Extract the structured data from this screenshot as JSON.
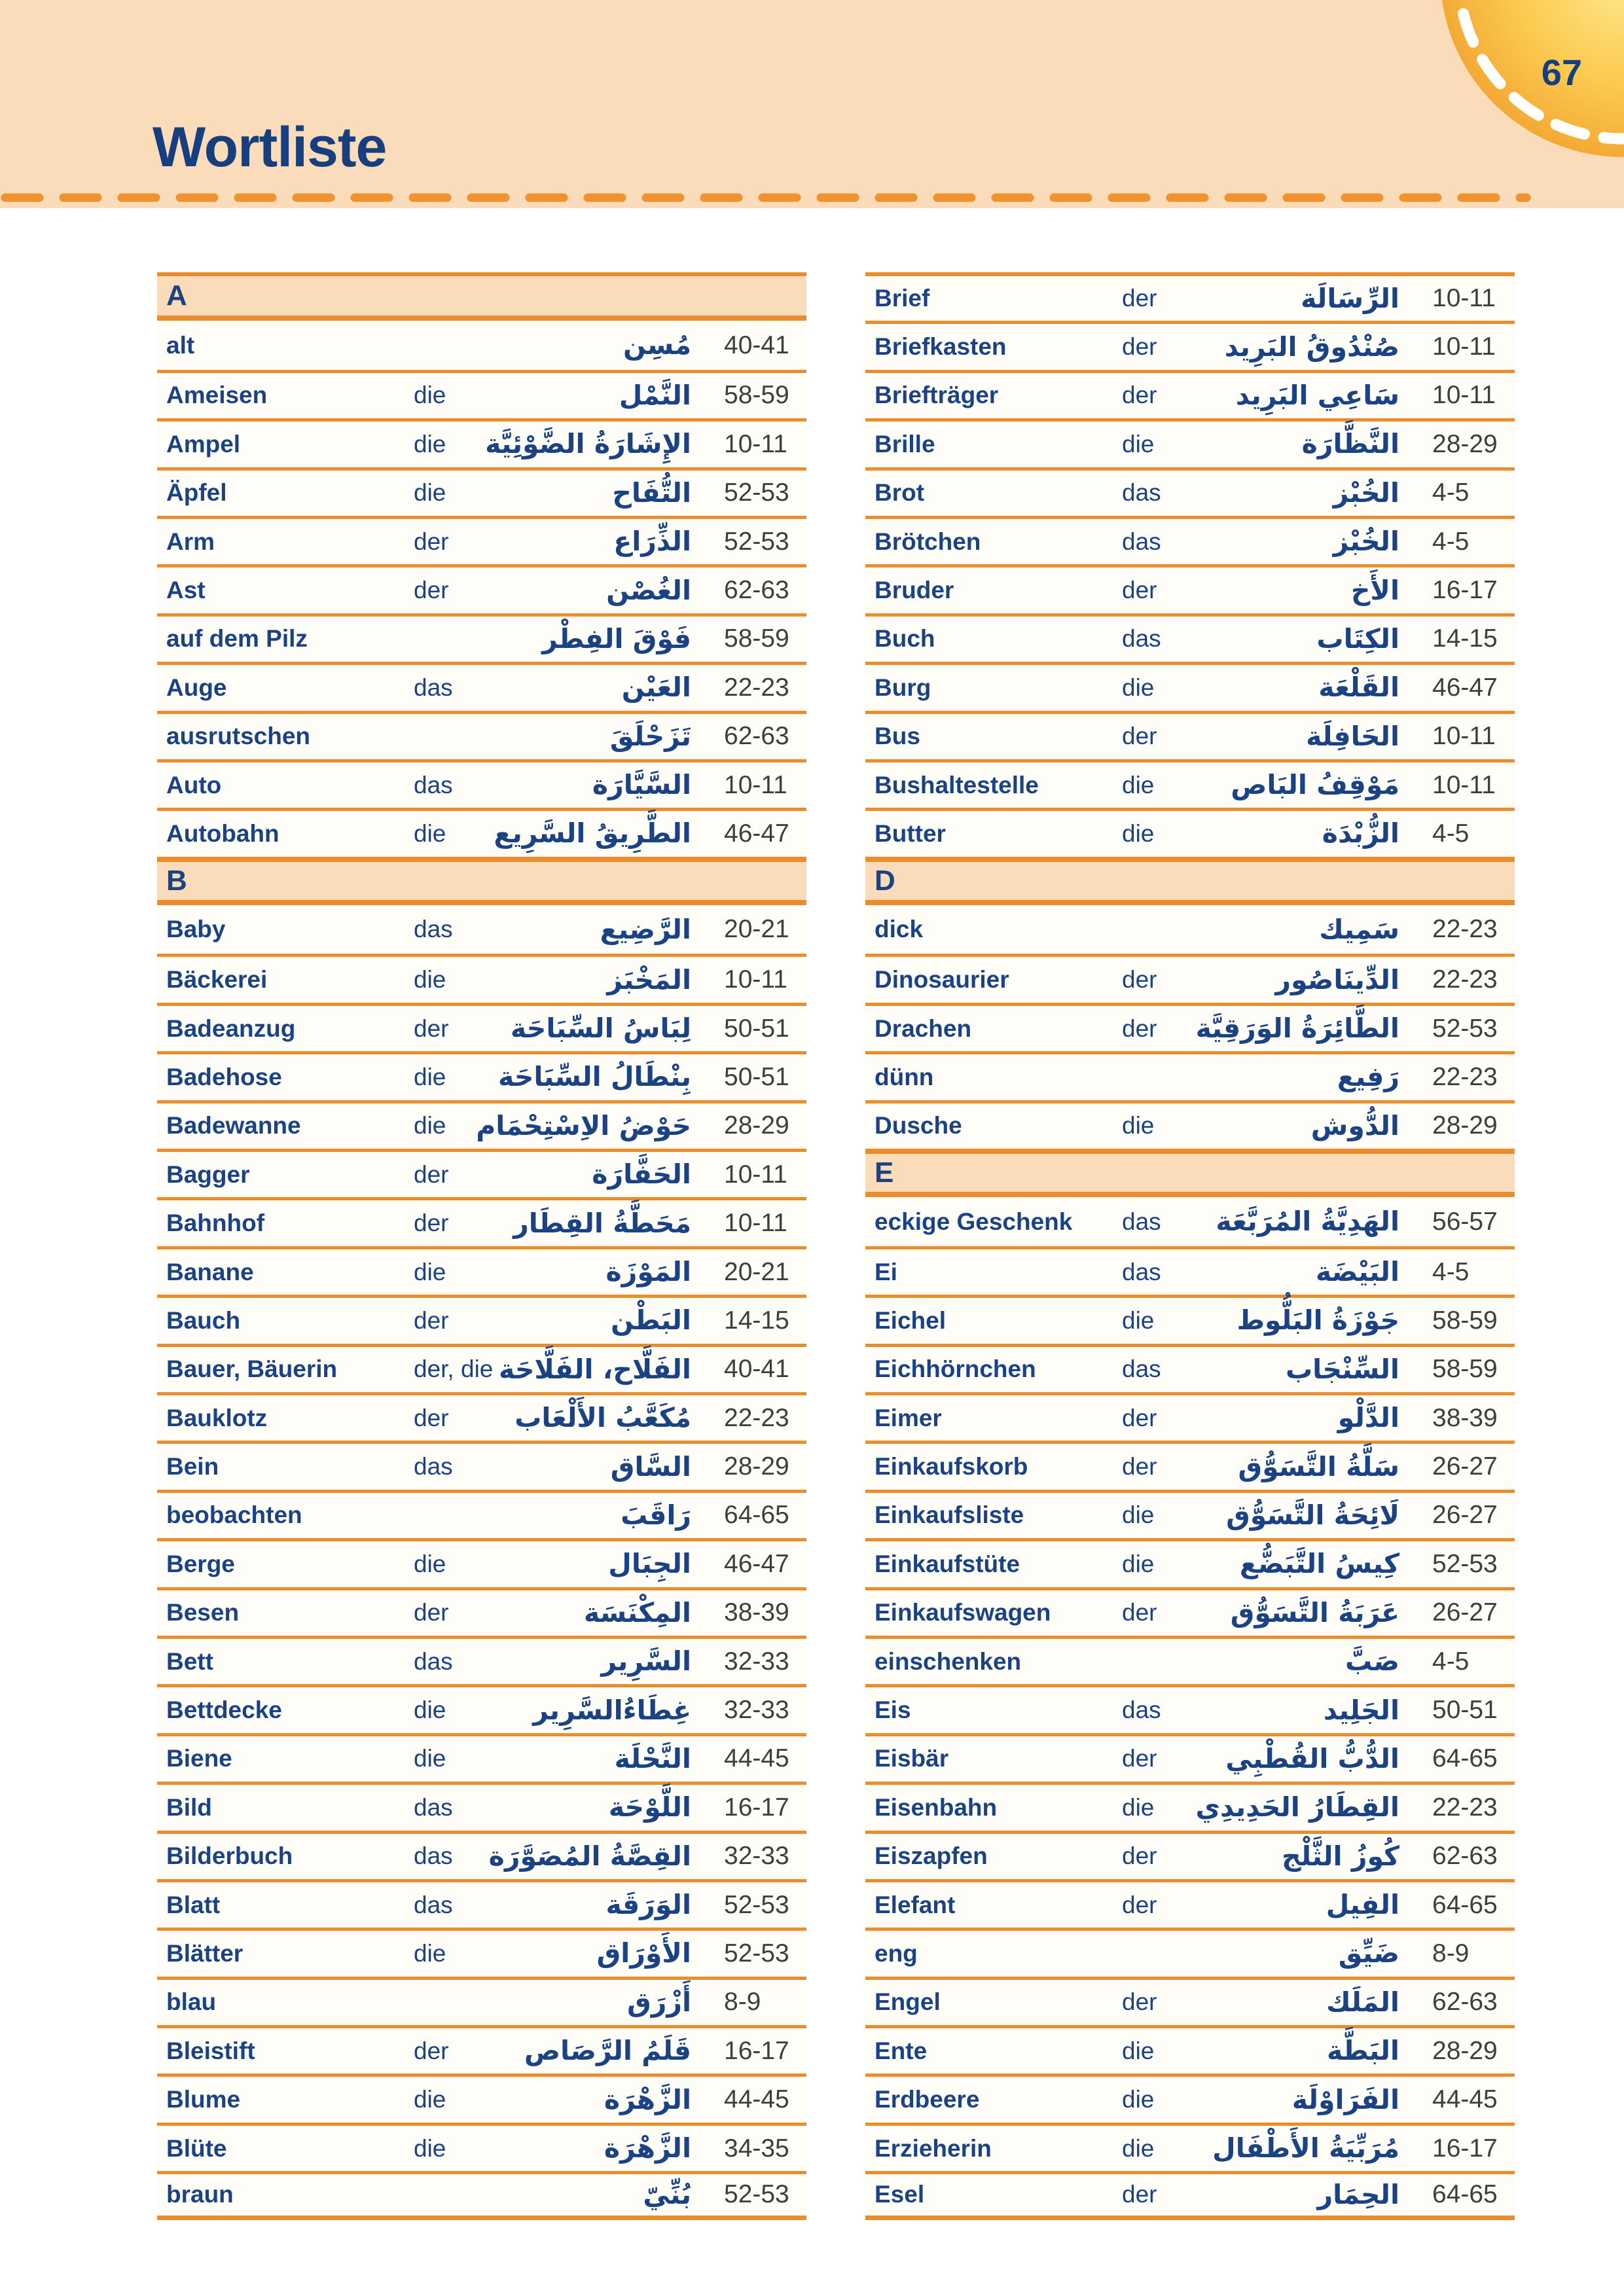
{
  "header": {
    "title": "Wortliste",
    "page_number": "67"
  },
  "colors": {
    "band_peach": "#fbdcba",
    "row_separator_orange": "#ec8d2d",
    "navy_text": "#1b4384",
    "page_number_gray": "#3f3e3c",
    "sun_orange": "#f2a22f"
  },
  "wordlist": {
    "left_rows": [
      {
        "letter": "A"
      },
      {
        "word": "alt",
        "article": "",
        "arabic": "مُسِن",
        "pages": "40-41"
      },
      {
        "word": "Ameisen",
        "article": "die",
        "arabic": "النَّمْل",
        "pages": "58-59"
      },
      {
        "word": "Ampel",
        "article": "die",
        "arabic": "الإِشَارَةُ الضَّوْئِيَّة",
        "pages": "10-11"
      },
      {
        "word": "Äpfel",
        "article": "die",
        "arabic": "التُّفَاح",
        "pages": "52-53"
      },
      {
        "word": "Arm",
        "article": "der",
        "arabic": "الذِّرَاع",
        "pages": "52-53"
      },
      {
        "word": "Ast",
        "article": "der",
        "arabic": "الغُصْن",
        "pages": "62-63"
      },
      {
        "word": "auf dem Pilz",
        "article": "",
        "arabic": "فَوْقَ الفِطْر",
        "pages": "58-59"
      },
      {
        "word": "Auge",
        "article": "das",
        "arabic": "العَيْن",
        "pages": "22-23"
      },
      {
        "word": "ausrutschen",
        "article": "",
        "arabic": "تَزَحْلَقَ",
        "pages": "62-63"
      },
      {
        "word": "Auto",
        "article": "das",
        "arabic": "السَّيَّارَة",
        "pages": "10-11"
      },
      {
        "word": "Autobahn",
        "article": "die",
        "arabic": "الطَّرِيقُ السَّرِيع",
        "pages": "46-47"
      },
      {
        "letter": "B"
      },
      {
        "word": "Baby",
        "article": "das",
        "arabic": "الرَّضِيع",
        "pages": "20-21"
      },
      {
        "word": "Bäckerei",
        "article": "die",
        "arabic": "المَخْبَز",
        "pages": "10-11"
      },
      {
        "word": "Badeanzug",
        "article": "der",
        "arabic": "لِبَاسُ السِّبَاحَة",
        "pages": "50-51"
      },
      {
        "word": "Badehose",
        "article": "die",
        "arabic": "بِنْطَالُ السِّبَاحَة",
        "pages": "50-51"
      },
      {
        "word": "Badewanne",
        "article": "die",
        "arabic": "حَوْضُ الاِسْتِحْمَام",
        "pages": "28-29"
      },
      {
        "word": "Bagger",
        "article": "der",
        "arabic": "الحَفَّارَة",
        "pages": "10-11"
      },
      {
        "word": "Bahnhof",
        "article": "der",
        "arabic": "مَحَطَّةُ القِطَار",
        "pages": "10-11"
      },
      {
        "word": "Banane",
        "article": "die",
        "arabic": "المَوْزَة",
        "pages": "20-21"
      },
      {
        "word": "Bauch",
        "article": "der",
        "arabic": "البَطْن",
        "pages": "14-15"
      },
      {
        "word": "Bauer, Bäuerin",
        "article": "der, die",
        "arabic": "الفَلَّاح، الفَلَّاحَة",
        "pages": "40-41"
      },
      {
        "word": "Bauklotz",
        "article": "der",
        "arabic": "مُكَعَّبُ الأَلْعَاب",
        "pages": "22-23"
      },
      {
        "word": "Bein",
        "article": "das",
        "arabic": "السَّاق",
        "pages": "28-29"
      },
      {
        "word": "beobachten",
        "article": "",
        "arabic": "رَاقَبَ",
        "pages": "64-65"
      },
      {
        "word": "Berge",
        "article": "die",
        "arabic": "الجِبَال",
        "pages": "46-47"
      },
      {
        "word": "Besen",
        "article": "der",
        "arabic": "المِكْنَسَة",
        "pages": "38-39"
      },
      {
        "word": "Bett",
        "article": "das",
        "arabic": "السَّرِير",
        "pages": "32-33"
      },
      {
        "word": "Bettdecke",
        "article": "die",
        "arabic": "غِطَاءُالسَّرِير",
        "pages": "32-33"
      },
      {
        "word": "Biene",
        "article": "die",
        "arabic": "النَّحْلَة",
        "pages": "44-45"
      },
      {
        "word": "Bild",
        "article": "das",
        "arabic": "اللَّوْحَة",
        "pages": "16-17"
      },
      {
        "word": "Bilderbuch",
        "article": "das",
        "arabic": "القِصَّةُ المُصَوَّرَة",
        "pages": "32-33"
      },
      {
        "word": "Blatt",
        "article": "das",
        "arabic": "الوَرَقَة",
        "pages": "52-53"
      },
      {
        "word": "Blätter",
        "article": "die",
        "arabic": "الأَوْرَاق",
        "pages": "52-53"
      },
      {
        "word": "blau",
        "article": "",
        "arabic": "أَزْرَق",
        "pages": "8-9"
      },
      {
        "word": "Bleistift",
        "article": "der",
        "arabic": "قَلَمُ الرَّصَاص",
        "pages": "16-17"
      },
      {
        "word": "Blume",
        "article": "die",
        "arabic": "الزَّهْرَة",
        "pages": "44-45"
      },
      {
        "word": "Blüte",
        "article": "die",
        "arabic": "الزَّهْرَة",
        "pages": "34-35"
      },
      {
        "word": "braun",
        "article": "",
        "arabic": "بُنِّيّ",
        "pages": "52-53"
      }
    ],
    "right_rows": [
      {
        "word": "Brief",
        "article": "der",
        "arabic": "الرِّسَالَة",
        "pages": "10-11"
      },
      {
        "word": "Briefkasten",
        "article": "der",
        "arabic": "صُنْدُوقُ البَرِيد",
        "pages": "10-11"
      },
      {
        "word": "Briefträger",
        "article": "der",
        "arabic": "سَاعِي البَرِيد",
        "pages": "10-11"
      },
      {
        "word": "Brille",
        "article": "die",
        "arabic": "النَّظَّارَة",
        "pages": "28-29"
      },
      {
        "word": "Brot",
        "article": "das",
        "arabic": "الخُبْز",
        "pages": "4-5"
      },
      {
        "word": "Brötchen",
        "article": "das",
        "arabic": "الخُبْز",
        "pages": "4-5"
      },
      {
        "word": "Bruder",
        "article": "der",
        "arabic": "الأَخ",
        "pages": "16-17"
      },
      {
        "word": "Buch",
        "article": "das",
        "arabic": "الكِتَاب",
        "pages": "14-15"
      },
      {
        "word": "Burg",
        "article": "die",
        "arabic": "القَلْعَة",
        "pages": "46-47"
      },
      {
        "word": "Bus",
        "article": "der",
        "arabic": "الحَافِلَة",
        "pages": "10-11"
      },
      {
        "word": "Bushaltestelle",
        "article": "die",
        "arabic": "مَوْقِفُ البَاص",
        "pages": "10-11"
      },
      {
        "word": "Butter",
        "article": "die",
        "arabic": "الزُّبْدَة",
        "pages": "4-5"
      },
      {
        "letter": "D"
      },
      {
        "word": "dick",
        "article": "",
        "arabic": "سَمِيك",
        "pages": "22-23"
      },
      {
        "word": "Dinosaurier",
        "article": "der",
        "arabic": "الدِّينَاصُور",
        "pages": "22-23"
      },
      {
        "word": "Drachen",
        "article": "der",
        "arabic": "الطَّائِرَةُ الوَرَقِيَّة",
        "pages": "52-53"
      },
      {
        "word": "dünn",
        "article": "",
        "arabic": "رَفِيع",
        "pages": "22-23"
      },
      {
        "word": "Dusche",
        "article": "die",
        "arabic": "الدُّوش",
        "pages": "28-29"
      },
      {
        "letter": "E"
      },
      {
        "word": "eckige Geschenk",
        "article": "das",
        "arabic": "الهَدِيَّةُ المُرَبَّعَة",
        "pages": "56-57"
      },
      {
        "word": "Ei",
        "article": "das",
        "arabic": "البَيْضَة",
        "pages": "4-5"
      },
      {
        "word": "Eichel",
        "article": "die",
        "arabic": "جَوْزَةُ البَلُّوط",
        "pages": "58-59"
      },
      {
        "word": "Eichhörnchen",
        "article": "das",
        "arabic": "السِّنْجَاب",
        "pages": "58-59"
      },
      {
        "word": "Eimer",
        "article": "der",
        "arabic": "الدَّلْو",
        "pages": "38-39"
      },
      {
        "word": "Einkaufskorb",
        "article": "der",
        "arabic": "سَلَّةُ التَّسَوُّق",
        "pages": "26-27"
      },
      {
        "word": "Einkaufsliste",
        "article": "die",
        "arabic": "لَائِحَةُ التَّسَوُّق",
        "pages": "26-27"
      },
      {
        "word": "Einkaufstüte",
        "article": "die",
        "arabic": "كِيسُ التَّبَضُّع",
        "pages": "52-53"
      },
      {
        "word": "Einkaufswagen",
        "article": "der",
        "arabic": "عَرَبَةُ التَّسَوُّق",
        "pages": "26-27"
      },
      {
        "word": "einschenken",
        "article": "",
        "arabic": "صَبَّ",
        "pages": "4-5"
      },
      {
        "word": "Eis",
        "article": "das",
        "arabic": "الجَلِيد",
        "pages": "50-51"
      },
      {
        "word": "Eisbär",
        "article": "der",
        "arabic": "الدُّبُّ القُطْبِي",
        "pages": "64-65"
      },
      {
        "word": "Eisenbahn",
        "article": "die",
        "arabic": "القِطَارُ الحَدِيدِي",
        "pages": "22-23"
      },
      {
        "word": "Eiszapfen",
        "article": "der",
        "arabic": "كُوزُ الثَّلْج",
        "pages": "62-63"
      },
      {
        "word": "Elefant",
        "article": "der",
        "arabic": "الفِيل",
        "pages": "64-65"
      },
      {
        "word": "eng",
        "article": "",
        "arabic": "ضَيِّق",
        "pages": "8-9"
      },
      {
        "word": "Engel",
        "article": "der",
        "arabic": "المَلَك",
        "pages": "62-63"
      },
      {
        "word": "Ente",
        "article": "die",
        "arabic": "البَطَّة",
        "pages": "28-29"
      },
      {
        "word": "Erdbeere",
        "article": "die",
        "arabic": "الفَرَاوْلَة",
        "pages": "44-45"
      },
      {
        "word": "Erzieherin",
        "article": "die",
        "arabic": "مُرَبِّيَةُ الأَطْفَال",
        "pages": "16-17"
      },
      {
        "word": "Esel",
        "article": "der",
        "arabic": "الحِمَار",
        "pages": "64-65"
      }
    ]
  }
}
